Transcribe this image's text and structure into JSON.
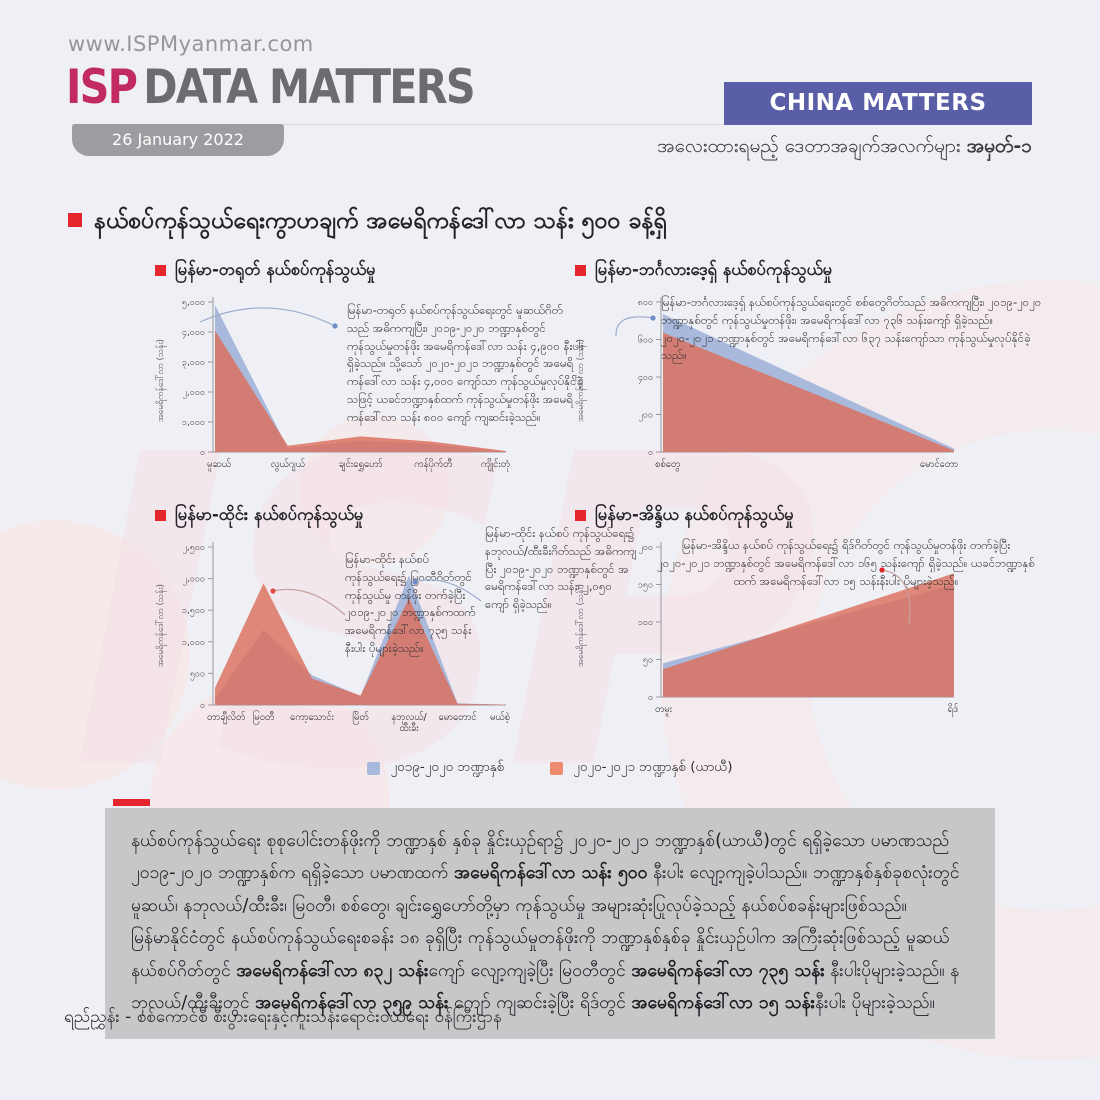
{
  "header": {
    "url": "www.ISPMyanmar.com",
    "logo_isp": "ISP",
    "logo_rest": "DATA MATTERS",
    "date": "26 January 2022",
    "badge": "CHINA MATTERS",
    "subtitle": [
      {
        "t": "အလေးထားရမည့် ဒေတာအချက်အလက်များ ",
        "b": false
      },
      {
        "t": "အမှတ်-၁",
        "b": true
      }
    ]
  },
  "heading": "နယ်စပ်ကုန်သွယ်ရေးကွာဟချက် အမေရိကန်ဒေါ်လာ သန်း ၅၀၀ ခန့်ရှိ",
  "colors": {
    "accent_red": "#e5262c",
    "badge_purple": "#5a5ea7",
    "logo_pink": "#c12a62",
    "series_blue": "#a9b9dc",
    "series_orange": "#dc6f5b",
    "legend_orange": "#ec8b6e"
  },
  "legend": [
    {
      "label": "၂၀၁၉-၂၀၂၀ ဘဏ္ဍာနှစ်",
      "color": "#a9b9dc"
    },
    {
      "label": "၂၀၂၀-၂၀၂၁ ဘဏ္ဍာနှစ် (ယာယီ)",
      "color": "#ec8b6e"
    }
  ],
  "chart_data": [
    {
      "type": "area",
      "title": "မြန်မာ-တရုတ် နယ်စပ်ကုန်သွယ်မှု",
      "ylabel": "အမေရိကန်ဒေါ်လာ (သန်း)",
      "ylim": [
        0,
        5000
      ],
      "yticks": [
        {
          "v": 0,
          "label": "၀"
        },
        {
          "v": 1000,
          "label": "၁,၀၀၀"
        },
        {
          "v": 2000,
          "label": "၂,၀၀၀"
        },
        {
          "v": 3000,
          "label": "၃,၀၀၀"
        },
        {
          "v": 4000,
          "label": "၄,၀၀၀"
        },
        {
          "v": 5000,
          "label": "၅,၀၀၀"
        }
      ],
      "categories": [
        "မူဆယ်",
        "လွယ်ဂျယ်",
        "ချင်းရွှေဟော်",
        "ကန်ပိုက်တီ",
        "ကျိုင်းတုံ"
      ],
      "series": [
        {
          "name": "၂၀၁၉-၂၀၂၀ ဘဏ္ဍာနှစ်",
          "color": "#a9b9dc",
          "opacity": 1,
          "values": [
            4900,
            130,
            380,
            260,
            10
          ]
        },
        {
          "name": "၂၀၂၀-၂၀၂၁ ဘဏ္ဍာနှစ် (ယာယီ)",
          "color": "#dc6f5b",
          "opacity": 0.82,
          "values": [
            4050,
            210,
            520,
            340,
            35
          ]
        }
      ],
      "annotations": [
        {
          "text": "မြန်မာ-တရုတ် နယ်စပ်ကုန်သွယ်ရေးတွင် မူဆယ်ဂိတ်သည် အဓိကကျပြီး၊ ၂၀၁၉-၂၀၂၀ ဘဏ္ဍာနှစ်တွင် ကုန်သွယ်မှုတန်ဖိုး အမေရိကန်ဒေါ်လာ သန်း ၄,၉၀၀ နီးပါး ရှိခဲ့သည်။ သို့သော် ၂၀၂၀-၂၀၂၁ ဘဏ္ဍာနှစ်တွင် အမေရိကန်ဒေါ်လာ သန်း ၄,၀၀၀ ကျော်သာ ကုန်သွယ်မှုလုပ်နိုင်ခဲ့သဖြင့် ယခင်ဘဏ္ဍာနှစ်ထက် ကုန်သွယ်မှုတန်ဖိုး အမေရိကန်ဒေါ်လာ သန်း ၈၀၀ ကျော် ကျဆင်းခဲ့သည်။"
        }
      ]
    },
    {
      "type": "area",
      "title": "မြန်မာ-ဘင်္ဂလားဒေ့ရှ် နယ်စပ်ကုန်သွယ်မှု",
      "ylabel": "အမေရိကန်ဒေါ်လာ (သန်း)",
      "ylim": [
        0,
        800
      ],
      "yticks": [
        {
          "v": 0,
          "label": "၀"
        },
        {
          "v": 200,
          "label": "၂၀၀"
        },
        {
          "v": 400,
          "label": "၄၀၀"
        },
        {
          "v": 600,
          "label": "၆၀၀"
        },
        {
          "v": 800,
          "label": "၈၀၀"
        }
      ],
      "categories": [
        "စစ်တွေ",
        "မောင်တော"
      ],
      "series": [
        {
          "name": "၂၀၁၉-၂၀၂၀ ဘဏ္ဍာနှစ်",
          "color": "#a9b9dc",
          "opacity": 1,
          "values": [
            736,
            18
          ]
        },
        {
          "name": "၂၀၂၀-၂၀၂၁ ဘဏ္ဍာနှစ် (ယာယီ)",
          "color": "#dc6f5b",
          "opacity": 0.82,
          "values": [
            637,
            8
          ]
        }
      ],
      "annotations": [
        {
          "text": "မြန်မာ-ဘင်္ဂလားဒေ့ရှ် နယ်စပ်ကုန်သွယ်ရေးတွင် စစ်တွေဂိတ်သည် အဓိကကျပြီး၊ ၂၀၁၉-၂၀၂၀ ဘဏ္ဍာနှစ်တွင် ကုန်သွယ်မှုတန်ဖိုး၊ အမေရိကန်ဒေါ်လာ ၇၃၆ သန်းကျော် ရှိခဲ့သည်။ ၂၀၂၀-၂၀၂၁ ဘဏ္ဍာနှစ်တွင် အမေရိကန်ဒေါ်လာ ၆၃၇ သန်းကျော်သာ ကုန်သွယ်မှုလုပ်နိုင်ခဲ့သည်။"
        }
      ]
    },
    {
      "type": "area",
      "title": "မြန်မာ-ထိုင်း နယ်စပ်ကုန်သွယ်မှု",
      "ylabel": "အမေရိကန်ဒေါ်လာ (သန်း)",
      "ylim": [
        0,
        2500
      ],
      "yticks": [
        {
          "v": 0,
          "label": "၀"
        },
        {
          "v": 500,
          "label": "၅၀၀"
        },
        {
          "v": 1000,
          "label": "၁,၀၀၀"
        },
        {
          "v": 1500,
          "label": "၁,၅၀၀"
        },
        {
          "v": 2000,
          "label": "၂,၀၀၀"
        },
        {
          "v": 2500,
          "label": "၂,၅၀၀"
        }
      ],
      "categories": [
        "တာချီလိတ်",
        "မြဝတီ",
        "ကော့သောင်း",
        "မြိတ်",
        "နဘုလယ်/\nထီးခီး",
        "မောတောင်",
        "မယ်စဲ့"
      ],
      "series": [
        {
          "name": "၂၀၁၉-၂၀၂၀ ဘဏ္ဍာနှစ်",
          "color": "#a9b9dc",
          "opacity": 1,
          "values": [
            100,
            1190,
            470,
            140,
            2050,
            25,
            5
          ]
        },
        {
          "name": "၂၀၂၀-၂၀၂၁ ဘဏ္ဍာနှစ် (ယာယီ)",
          "color": "#dc6f5b",
          "opacity": 0.82,
          "values": [
            270,
            1925,
            420,
            150,
            1690,
            20,
            5
          ]
        }
      ],
      "annotations": [
        {
          "text": "မြန်မာ-ထိုင်း နယ်စပ် ကုန်သွယ်ရေး၌ မြဝတီဂိတ်တွင် ကုန်သွယ်မှု တန်ဖိုး တက်ခဲ့ပြီး ၂၀၁၉-၂၀၂၀ ဘဏ္ဍာနှစ်ကထက် အမေရိကန်ဒေါ်လာ ၇၃၅ သန်းနီးပါး ပိုများခဲ့သည်။"
        },
        {
          "text": "မြန်မာ-ထိုင်း နယ်စပ် ကုန်သွယ်ရေး၌ နဘုလယ်/ထီးခီးဂိတ်သည် အဓိကကျပြီး ၂၀၁၉-၂၀၂၀ ဘဏ္ဍာနှစ်တွင် အမေရိကန်ဒေါ်လာ သန်း၊ ၂,၀၅၀ ကျော် ရှိခဲ့သည်။"
        }
      ]
    },
    {
      "type": "area",
      "title": "မြန်မာ-အိန္ဒိယ နယ်စပ်ကုန်သွယ်မှု",
      "ylabel": "အမေရိကန်ဒေါ်လာ (သန်း)",
      "ylim": [
        0,
        200
      ],
      "yticks": [
        {
          "v": 0,
          "label": "၀"
        },
        {
          "v": 50,
          "label": "၅၀"
        },
        {
          "v": 100,
          "label": "၁၀၀"
        },
        {
          "v": 150,
          "label": "၁၅၀"
        },
        {
          "v": 200,
          "label": "၂၀၀"
        }
      ],
      "categories": [
        "တမူး",
        "ရိဒ်"
      ],
      "series": [
        {
          "name": "၂၀၁၉-၂၀၂၀ ဘဏ္ဍာနှစ်",
          "color": "#a9b9dc",
          "opacity": 1,
          "values": [
            45,
            150
          ]
        },
        {
          "name": "၂၀၂၀-၂၀၂၁ ဘဏ္ဍာနှစ် (ယာယီ)",
          "color": "#dc6f5b",
          "opacity": 0.82,
          "values": [
            37,
            165
          ]
        }
      ],
      "annotations": [
        {
          "text": "မြန်မာ-အိန္ဒိယ နယ်စပ် ကုန်သွယ်ရေး၌ ရိဒ်ဂိတ်တွင် ကုန်သွယ်မှုတန်ဖိုး တက်ခဲ့ပြီး ၂၀၂၀-၂၀၂၁ ဘဏ္ဍာနှစ်တွင် အမေရိကန်ဒေါ်လာ ၁၆၅ သန်းကျော် ရှိခဲ့သည်။ ယခင်ဘဏ္ဍာနှစ်ထက် အမေရိကန်ဒေါ်လာ ၁၅ သန်းနီးပါး ပိုများခဲ့သည်။"
        }
      ]
    }
  ],
  "summary": {
    "segments": [
      {
        "t": "နယ်စပ်ကုန်သွယ်ရေး စုစုပေါင်းတန်ဖိုးကို ဘဏ္ဍာနှစ် နှစ်ခု နှိုင်းယှဉ်ရာ၌ ၂၀၂၀-၂၀၂၁ ဘဏ္ဍာနှစ်(ယာယီ)တွင် ရရှိခဲ့သော ပမာဏသည် ၂၀၁၉-၂၀၂၀ ဘဏ္ဍာနှစ်က ရရှိခဲ့သော ပမာဏထက် ",
        "b": false
      },
      {
        "t": "အမေရိကန်ဒေါ်လာ သန်း ၅၀၀",
        "b": true
      },
      {
        "t": " နီးပါး လျော့ကျခဲ့ပါသည်။ ဘဏ္ဍာနှစ်နှစ်ခုစလုံးတွင် မူဆယ်၊ နဘုလယ်/ထီးခီး၊ မြဝတီ၊ စစ်တွေ၊ ချင်းရွှေဟော်တို့မှာ ကုန်သွယ်မှု အများဆုံးပြုလုပ်ခဲ့သည့် နယ်စပ်စခန်းများဖြစ်သည်။ မြန်မာနိုင်ငံတွင် နယ်စပ်ကုန်သွယ်ရေးစခန်း ၁၈ ခုရှိပြီး ကုန်သွယ်မှုတန်ဖိုးကို ဘဏ္ဍာနှစ်နှစ်ခု နှိုင်းယှဉ်ပါက အကြီးဆုံးဖြစ်သည့် မူဆယ်နယ်စပ်ဂိတ်တွင် ",
        "b": false
      },
      {
        "t": "အမေရိကန်ဒေါ်လာ ၈၃၂ သန်း",
        "b": true
      },
      {
        "t": "ကျော် လျော့ကျခဲ့ပြီး မြဝတီတွင် ",
        "b": false
      },
      {
        "t": "အမေရိကန်ဒေါ်လာ ၇၃၅ သန်း",
        "b": true
      },
      {
        "t": " နီးပါးပိုများခဲ့သည်။ နဘုလယ်/ထီးခီးတွင် ",
        "b": false
      },
      {
        "t": "အမေရိကန်ဒေါ်လာ ၃၅၉ သန်း",
        "b": true
      },
      {
        "t": " ကျော် ကျဆင်းခဲ့ပြီး ရိဒ်တွင် ",
        "b": false
      },
      {
        "t": "အမေရိကန်ဒေါ်လာ ၁၅ သန်း",
        "b": true
      },
      {
        "t": "နီးပါး ပိုများခဲ့သည်။",
        "b": false
      }
    ]
  },
  "footer": "ရည်ညွှန်း - စစ်ကောင်စီ စီးပွားရေးနှင့်ကူးသန်းရောင်းဝယ်ရေး ဝန်ကြီးဌာန"
}
